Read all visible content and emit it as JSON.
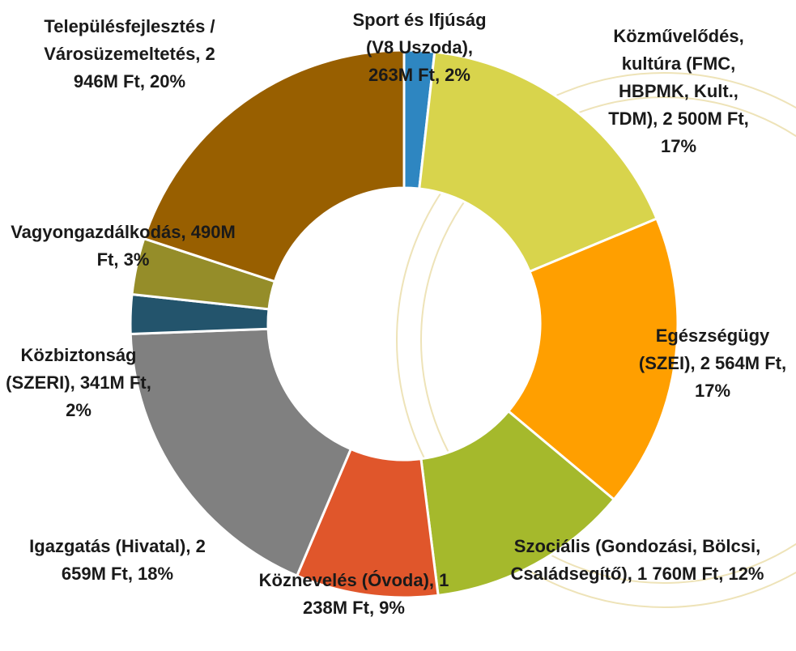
{
  "chart_data": {
    "type": "donut",
    "labels": [
      "Sport és Ifjúság (V8 Uszoda), 263M Ft, 2%",
      "Közművelődés, kultúra (FMC, HBPMK, Kult., TDM), 2 500M Ft, 17%",
      "Egészségügy (SZEI), 2 564M Ft, 17%",
      "Szociális (Gondozási, Bölcsi, Családsegítő), 1 760M Ft, 12%",
      "Köznevelés (Óvoda), 1 238M Ft, 9%",
      "Igazgatás (Hivatal), 2 659M Ft, 18%",
      "Közbiztonság (SZERI), 341M Ft, 2%",
      "Vagyongazdálkodás, 490M Ft, 3%",
      "Településfejlesztés / Városüzemeltetés, 2 946M Ft, 20%"
    ],
    "values": [
      263,
      2500,
      2564,
      1760,
      1238,
      2659,
      341,
      490,
      2946
    ],
    "colors": [
      "#2e86c1",
      "#d8d44c",
      "#ff9f00",
      "#a5b92c",
      "#e0562b",
      "#808080",
      "#23546c",
      "#958d29",
      "#985f00"
    ]
  }
}
